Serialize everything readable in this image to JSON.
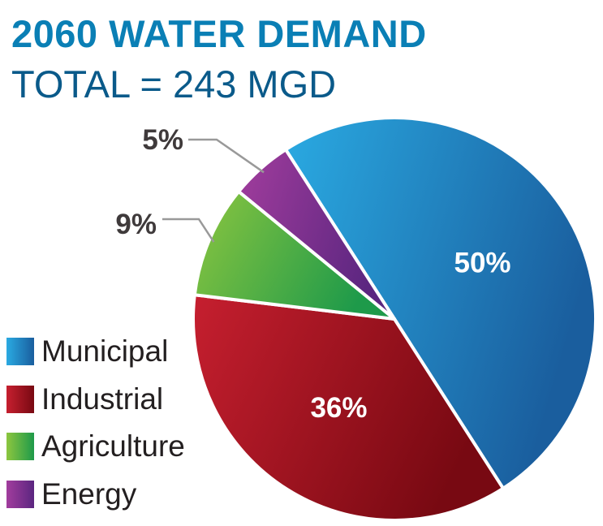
{
  "chart_data": {
    "type": "pie",
    "title": "2060 WATER DEMAND",
    "subtitle": "TOTAL = 243 MGD",
    "slices": [
      {
        "name": "Municipal",
        "value": 50,
        "label": "50%",
        "colors": [
          "#2aaae2",
          "#1a5e9e"
        ]
      },
      {
        "name": "Industrial",
        "value": 36,
        "label": "36%",
        "colors": [
          "#c61f2f",
          "#780912"
        ]
      },
      {
        "name": "Agriculture",
        "value": 9,
        "label": "9%",
        "colors": [
          "#8dc63f",
          "#1e9a4a"
        ]
      },
      {
        "name": "Energy",
        "value": 5,
        "label": "5%",
        "colors": [
          "#a23d9d",
          "#5b2680"
        ]
      }
    ],
    "legend_position": "left"
  }
}
